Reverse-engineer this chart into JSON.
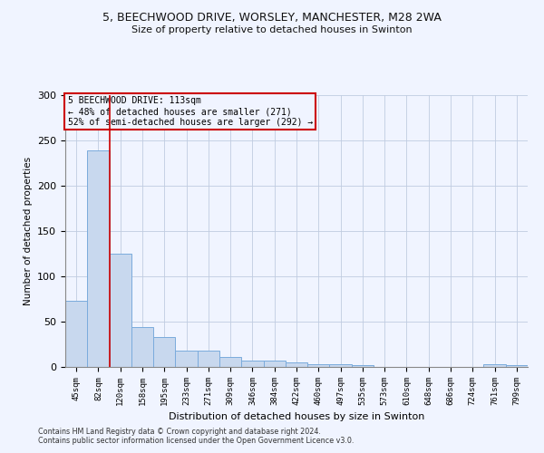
{
  "title1": "5, BEECHWOOD DRIVE, WORSLEY, MANCHESTER, M28 2WA",
  "title2": "Size of property relative to detached houses in Swinton",
  "xlabel": "Distribution of detached houses by size in Swinton",
  "ylabel": "Number of detached properties",
  "categories": [
    "45sqm",
    "82sqm",
    "120sqm",
    "158sqm",
    "195sqm",
    "233sqm",
    "271sqm",
    "309sqm",
    "346sqm",
    "384sqm",
    "422sqm",
    "460sqm",
    "497sqm",
    "535sqm",
    "573sqm",
    "610sqm",
    "648sqm",
    "686sqm",
    "724sqm",
    "761sqm",
    "799sqm"
  ],
  "values": [
    73,
    239,
    125,
    44,
    33,
    18,
    18,
    11,
    7,
    7,
    5,
    3,
    3,
    2,
    0,
    0,
    0,
    0,
    0,
    3,
    2
  ],
  "bar_color": "#c8d8ee",
  "bar_edgecolor": "#7aabdc",
  "bar_linewidth": 0.7,
  "vline_x": 1.5,
  "vline_color": "#cc0000",
  "vline_linewidth": 1.2,
  "annotation_text": "5 BEECHWOOD DRIVE: 113sqm\n← 48% of detached houses are smaller (271)\n52% of semi-detached houses are larger (292) →",
  "annotation_box_color": "#cc0000",
  "ylim": [
    0,
    300
  ],
  "yticks": [
    0,
    50,
    100,
    150,
    200,
    250,
    300
  ],
  "footnote1": "Contains HM Land Registry data © Crown copyright and database right 2024.",
  "footnote2": "Contains public sector information licensed under the Open Government Licence v3.0.",
  "bg_color": "#f0f4ff",
  "grid_color": "#c0cce0"
}
